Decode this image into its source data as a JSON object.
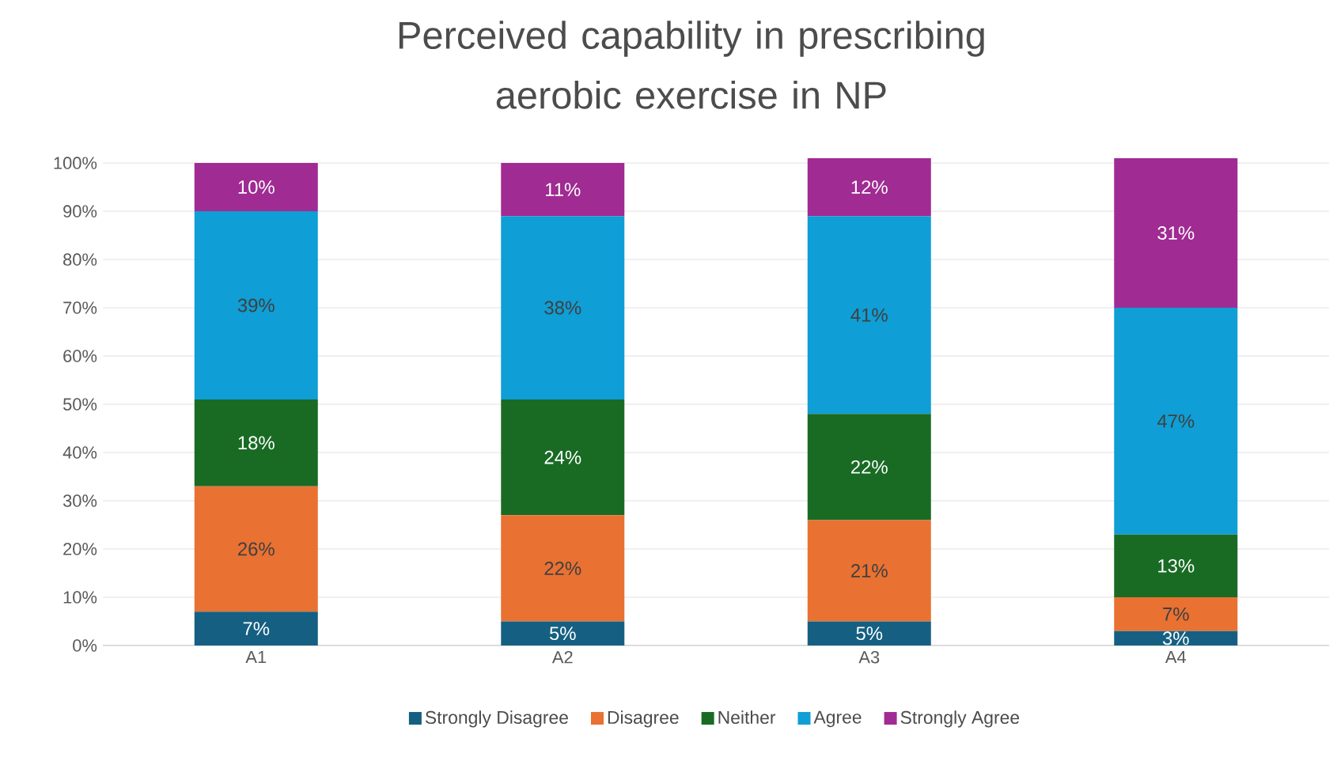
{
  "chart_data": {
    "type": "bar",
    "stacked": true,
    "title": "Perceived capability in prescribing aerobic exercise in NP",
    "categories": [
      "A1",
      "A2",
      "A3",
      "A4"
    ],
    "series": [
      {
        "name": "Strongly Disagree",
        "color": "#156082",
        "values": [
          7,
          5,
          5,
          3
        ],
        "value_labels": [
          "7%",
          "5%",
          "5%",
          "3%"
        ]
      },
      {
        "name": "Disagree",
        "color": "#e97132",
        "values": [
          26,
          22,
          21,
          7
        ],
        "value_labels": [
          "26%",
          "22%",
          "21%",
          "7%"
        ]
      },
      {
        "name": "Neither",
        "color": "#196b24",
        "values": [
          18,
          24,
          22,
          13
        ],
        "value_labels": [
          "18%",
          "24%",
          "22%",
          "13%"
        ]
      },
      {
        "name": "Agree",
        "color": "#0f9ed5",
        "values": [
          39,
          38,
          41,
          47
        ],
        "value_labels": [
          "39%",
          "38%",
          "41%",
          "47%"
        ]
      },
      {
        "name": "Strongly Agree",
        "color": "#a02b93",
        "values": [
          10,
          11,
          12,
          31
        ],
        "value_labels": [
          "10%",
          "11%",
          "12%",
          "31%"
        ]
      }
    ],
    "ylim": [
      0,
      101
    ],
    "yticks": [
      {
        "value": 0,
        "label": "0%"
      },
      {
        "value": 10,
        "label": "10%"
      },
      {
        "value": 20,
        "label": "20%"
      },
      {
        "value": 30,
        "label": "30%"
      },
      {
        "value": 40,
        "label": "40%"
      },
      {
        "value": 50,
        "label": "50%"
      },
      {
        "value": 60,
        "label": "60%"
      },
      {
        "value": 70,
        "label": "70%"
      },
      {
        "value": 80,
        "label": "80%"
      },
      {
        "value": 90,
        "label": "90%"
      },
      {
        "value": 100,
        "label": "100%"
      }
    ],
    "grid": "y",
    "legend": "bottom"
  }
}
